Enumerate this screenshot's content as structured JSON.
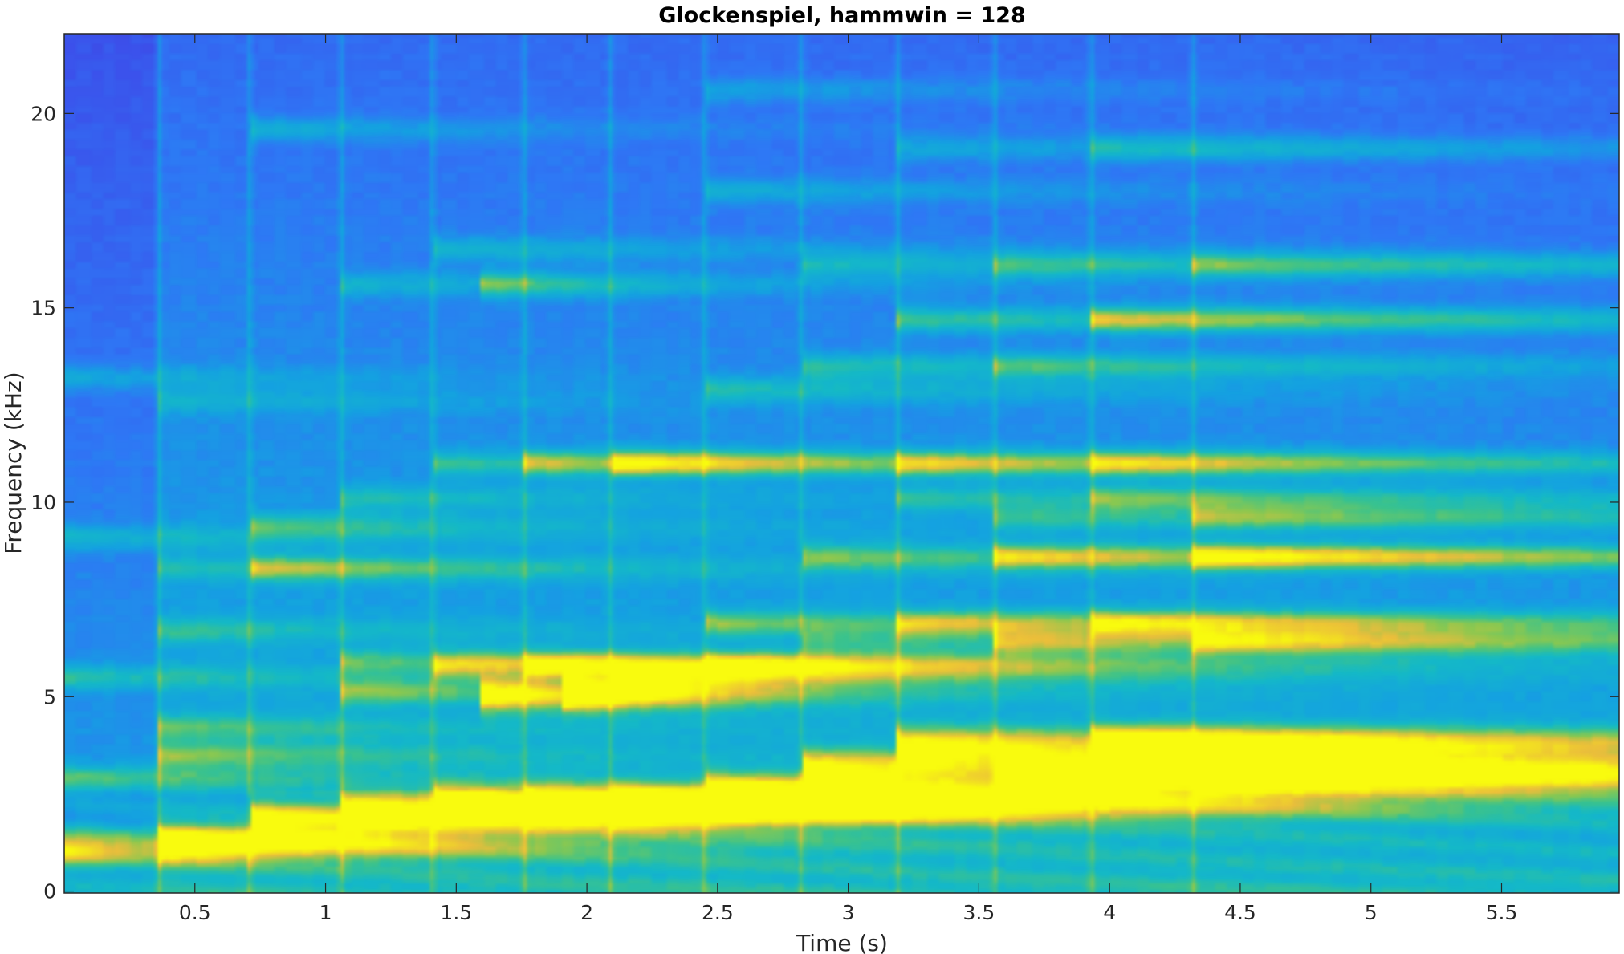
{
  "chart_data": {
    "type": "heatmap",
    "title": "Glockenspiel, hammwin = 128",
    "xlabel": "Time (s)",
    "ylabel": "Frequency (kHz)",
    "xlim": [
      0,
      5.95
    ],
    "ylim": [
      -0.05,
      22.05
    ],
    "xticks": [
      0.5,
      1,
      1.5,
      2,
      2.5,
      3,
      3.5,
      4,
      4.5,
      5,
      5.5
    ],
    "xtick_labels": [
      "0.5",
      "1",
      "1.5",
      "2",
      "2.5",
      "3",
      "3.5",
      "4",
      "4.5",
      "5",
      "5.5"
    ],
    "yticks": [
      0,
      5,
      10,
      15,
      20
    ],
    "ytick_labels": [
      "0",
      "5",
      "10",
      "15",
      "20"
    ],
    "colormap": "parula",
    "colors": {
      "low": "#3e26a8",
      "mid_low": "#2e64f5",
      "mid": "#14b4d0",
      "mid_high": "#4fc16b",
      "high": "#f4c33a",
      "peak": "#f9fb0e"
    },
    "grid": false,
    "note_onsets_s": [
      0.36,
      0.71,
      1.06,
      1.41,
      1.76,
      2.09,
      2.45,
      2.82,
      3.19,
      3.56,
      3.93,
      4.32
    ],
    "notes": [
      {
        "onset": 0.0,
        "decay_s": 1.0,
        "partials_khz": [
          1.1,
          2.9,
          5.5,
          9.1,
          13.2
        ]
      },
      {
        "onset": 0.36,
        "decay_s": 1.2,
        "partials_khz": [
          1.3,
          3.5,
          4.2,
          6.7,
          8.3,
          12.6
        ]
      },
      {
        "onset": 0.71,
        "decay_s": 1.2,
        "partials_khz": [
          1.9,
          8.3,
          9.4,
          19.6
        ]
      },
      {
        "onset": 1.06,
        "decay_s": 1.3,
        "partials_khz": [
          2.1,
          5.1,
          5.9,
          10.1,
          15.6
        ]
      },
      {
        "onset": 1.41,
        "decay_s": 1.4,
        "partials_khz": [
          2.3,
          5.8,
          11.0,
          16.5
        ]
      },
      {
        "onset": 1.59,
        "decay_s": 0.6,
        "partials_khz": [
          5.0,
          15.6
        ]
      },
      {
        "onset": 1.76,
        "decay_s": 1.5,
        "partials_khz": [
          2.2,
          5.8,
          11.0
        ]
      },
      {
        "onset": 1.91,
        "decay_s": 0.6,
        "partials_khz": [
          5.1
        ]
      },
      {
        "onset": 2.09,
        "decay_s": 1.6,
        "partials_khz": [
          2.2,
          11.0,
          5.5
        ]
      },
      {
        "onset": 2.45,
        "decay_s": 1.6,
        "partials_khz": [
          2.6,
          6.9,
          5.8,
          12.9,
          18.0,
          20.6
        ]
      },
      {
        "onset": 2.82,
        "decay_s": 1.8,
        "partials_khz": [
          3.2,
          8.6,
          13.5,
          16.1,
          6.4
        ]
      },
      {
        "onset": 3.19,
        "decay_s": 2.2,
        "partials_khz": [
          3.8,
          14.7,
          6.9,
          11.0,
          10.1,
          19.1
        ]
      },
      {
        "onset": 3.56,
        "decay_s": 2.2,
        "partials_khz": [
          3.0,
          8.6,
          6.4,
          9.6,
          16.1,
          13.5
        ]
      },
      {
        "onset": 3.93,
        "decay_s": 2.4,
        "partials_khz": [
          3.8,
          14.7,
          6.9,
          11.0,
          10.1,
          19.1
        ]
      },
      {
        "onset": 4.32,
        "decay_s": 2.6,
        "partials_khz": [
          3.0,
          8.6,
          6.4,
          9.6,
          16.1
        ]
      }
    ]
  }
}
